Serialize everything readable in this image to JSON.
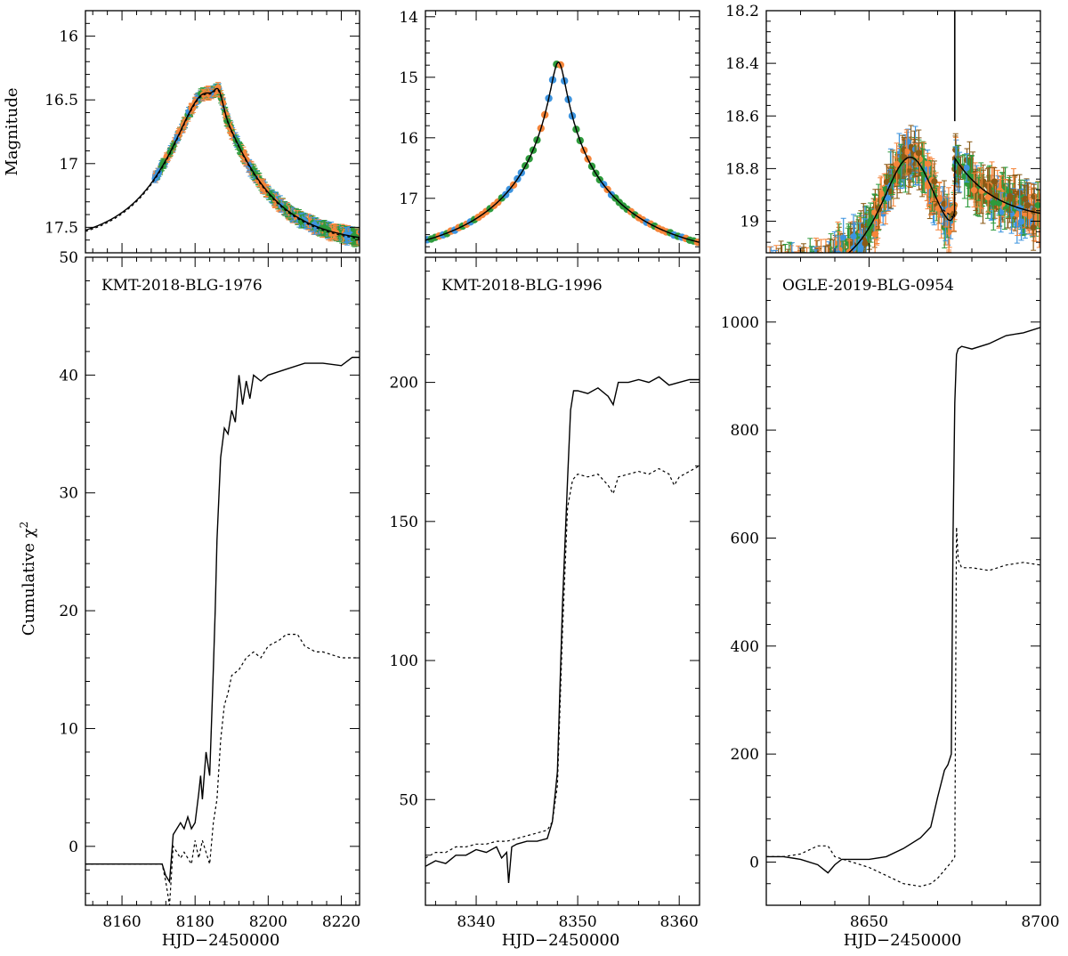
{
  "figure": {
    "x_label": "HJD−2450000",
    "top_y_label": "Magnitude",
    "bottom_y_label": "Cumulative χ",
    "bottom_y_label_sup": "2"
  },
  "colors": {
    "orange": "#f5853a",
    "blue": "#3d94df",
    "green": "#2e9a3c",
    "brown": "#8a5a16",
    "curve": "#000000"
  },
  "chart_data": [
    {
      "type": "line",
      "panel": "light-curve",
      "event": "KMT-2018-BLG-1976",
      "xlabel": "HJD−2450000",
      "ylabel": "Magnitude",
      "xlim": [
        8150,
        8225
      ],
      "ylim": [
        17.7,
        15.8
      ],
      "y_inverted": true,
      "yticks": [
        16,
        16.5,
        17,
        17.5
      ],
      "yticklabels": [
        "16",
        "16.5",
        "17",
        "17.5"
      ],
      "xticks": [
        8160,
        8180,
        8200,
        8220
      ],
      "model": {
        "t0": 8183,
        "u0": 0.345,
        "tE": 22,
        "base_mag": 17.65,
        "bump": {
          "t": 8186.5,
          "amp": 0.12,
          "width": 1.6
        }
      },
      "data_x_range": [
        8169,
        8225
      ],
      "data_colors": [
        "orange",
        "blue",
        "green"
      ]
    },
    {
      "type": "line",
      "panel": "cumulative-chi2",
      "event": "KMT-2018-BLG-1976",
      "xlabel": "HJD−2450000",
      "ylabel": "Cumulative χ2",
      "xlim": [
        8150,
        8225
      ],
      "ylim": [
        -5,
        50
      ],
      "xticks": [
        8160,
        8180,
        8200,
        8220
      ],
      "xticklabels": [
        "8160",
        "8180",
        "8200",
        "8220"
      ],
      "yticks": [
        0,
        10,
        20,
        30,
        40,
        50
      ],
      "yticklabels": [
        "0",
        "10",
        "20",
        "30",
        "40",
        "50"
      ],
      "series": [
        {
          "name": "solid",
          "style": "solid",
          "x": [
            8150,
            8171,
            8172,
            8173,
            8174,
            8175,
            8176,
            8177,
            8178,
            8179,
            8180,
            8181,
            8181.5,
            8182,
            8183,
            8184,
            8185,
            8185.5,
            8186,
            8187,
            8188,
            8189,
            8190,
            8191,
            8192,
            8193,
            8194,
            8195,
            8196,
            8198,
            8200,
            8205,
            8210,
            8215,
            8220,
            8223,
            8225
          ],
          "y": [
            -1.5,
            -1.5,
            -2.5,
            -3.0,
            1.0,
            1.5,
            2.0,
            1.5,
            2.5,
            1.5,
            2.0,
            4.5,
            6.0,
            4.0,
            8.0,
            6.0,
            15.0,
            20.0,
            26.0,
            33.0,
            35.5,
            35.0,
            37.0,
            36.0,
            40.0,
            37.5,
            39.5,
            38.0,
            40.0,
            39.5,
            40.0,
            40.5,
            41.0,
            41.0,
            40.8,
            41.5,
            41.5
          ]
        },
        {
          "name": "dotted",
          "style": "dotted",
          "x": [
            8150,
            8171,
            8172,
            8173,
            8174,
            8175,
            8176,
            8177,
            8178,
            8179,
            8180,
            8181,
            8182,
            8183,
            8184,
            8185,
            8186,
            8187,
            8188,
            8189,
            8190,
            8192,
            8194,
            8196,
            8198,
            8200,
            8203,
            8205,
            8208,
            8210,
            8213,
            8215,
            8220,
            8225
          ],
          "y": [
            -1.5,
            -1.5,
            -3.0,
            -5.0,
            0.0,
            -0.5,
            -1.0,
            -0.5,
            -1.0,
            -1.5,
            0.5,
            -1.0,
            0.5,
            -0.5,
            -1.5,
            2.0,
            4.0,
            9.0,
            12.0,
            13.0,
            14.5,
            15.0,
            16.0,
            16.5,
            16.0,
            17.0,
            17.5,
            18.0,
            18.0,
            17.0,
            16.5,
            16.5,
            16.0,
            16.0
          ]
        }
      ]
    },
    {
      "type": "line",
      "panel": "light-curve",
      "event": "KMT-2018-BLG-1996",
      "xlabel": "HJD−2450000",
      "ylabel": "Magnitude",
      "xlim": [
        8335,
        8362
      ],
      "ylim": [
        17.9,
        13.9
      ],
      "y_inverted": true,
      "yticks": [
        14,
        15,
        16,
        17
      ],
      "yticklabels": [
        "14",
        "15",
        "16",
        "17"
      ],
      "xticks": [
        8340,
        8350,
        8360
      ],
      "model": {
        "t0": 8348.1,
        "u0": 0.048,
        "tE": 14,
        "base_mag": 18.05,
        "bump": null
      },
      "data_x_range": [
        8335,
        8362
      ],
      "data_colors": [
        "orange",
        "blue",
        "green"
      ]
    },
    {
      "type": "line",
      "panel": "cumulative-chi2",
      "event": "KMT-2018-BLG-1996",
      "xlabel": "HJD−2450000",
      "ylabel": "Cumulative χ2",
      "xlim": [
        8335,
        8362
      ],
      "ylim": [
        12,
        245
      ],
      "xticks": [
        8340,
        8350,
        8360
      ],
      "xticklabels": [
        "8340",
        "8350",
        "8360"
      ],
      "yticks": [
        50,
        100,
        150,
        200
      ],
      "yticklabels": [
        "50",
        "100",
        "150",
        "200"
      ],
      "series": [
        {
          "name": "solid",
          "style": "solid",
          "x": [
            8335,
            8336,
            8337,
            8338,
            8339,
            8340,
            8341,
            8342,
            8342.5,
            8343,
            8343.2,
            8343.5,
            8344,
            8345,
            8346,
            8347,
            8347.5,
            8348,
            8348.5,
            8349,
            8349.3,
            8349.6,
            8350,
            8351,
            8352,
            8353,
            8353.5,
            8354,
            8355,
            8356,
            8357,
            8358,
            8359,
            8360,
            8361,
            8362
          ],
          "y": [
            26,
            28,
            27,
            30,
            30,
            32,
            31,
            33,
            29,
            31,
            20,
            33,
            34,
            35,
            35,
            36,
            42,
            60,
            120,
            165,
            190,
            197,
            197,
            196,
            198,
            195,
            192,
            200,
            200,
            201,
            200,
            202,
            199,
            200,
            201,
            201
          ]
        },
        {
          "name": "dotted",
          "style": "dotted",
          "x": [
            8335,
            8336,
            8337,
            8338,
            8339,
            8340,
            8341,
            8342,
            8343,
            8344,
            8345,
            8346,
            8347,
            8347.5,
            8348,
            8348.5,
            8349,
            8349.5,
            8350,
            8351,
            8352,
            8353,
            8353.5,
            8354,
            8355,
            8356,
            8357,
            8358,
            8359,
            8359.5,
            8360,
            8361,
            8362
          ],
          "y": [
            29,
            31,
            31,
            33,
            33,
            34,
            34,
            35,
            35,
            36,
            37,
            38,
            39,
            42,
            55,
            110,
            155,
            165,
            167,
            166,
            167,
            163,
            160,
            166,
            167,
            168,
            167,
            169,
            167,
            163,
            166,
            168,
            170
          ]
        }
      ]
    },
    {
      "type": "line",
      "panel": "light-curve",
      "event": "OGLE-2019-BLG-0954",
      "xlabel": "HJD−2450000",
      "ylabel": "Magnitude",
      "xlim": [
        8620,
        8700
      ],
      "ylim": [
        19.12,
        18.2
      ],
      "y_inverted": true,
      "yticks": [
        18.2,
        18.4,
        18.6,
        18.8,
        19
      ],
      "yticklabels": [
        "18.2",
        "18.4",
        "18.6",
        "18.8",
        "19"
      ],
      "xticks": [
        8650,
        8700
      ],
      "model": {
        "t0": 8662,
        "u0": 0.8,
        "tE": 12,
        "base_mag": 19.22,
        "caustic_t": 8675,
        "post_caustic_mag": 18.76
      },
      "data_x_range": [
        8620,
        8700
      ],
      "data_colors": [
        "orange",
        "blue",
        "green",
        "brown"
      ]
    },
    {
      "type": "line",
      "panel": "cumulative-chi2",
      "event": "OGLE-2019-BLG-0954",
      "xlabel": "HJD−2450000",
      "ylabel": "Cumulative χ2",
      "xlim": [
        8620,
        8700
      ],
      "ylim": [
        -80,
        1120
      ],
      "xticks": [
        8650,
        8700
      ],
      "xticklabels": [
        "8650",
        "8700"
      ],
      "yticks": [
        0,
        200,
        400,
        600,
        800,
        1000
      ],
      "yticklabels": [
        "0",
        "200",
        "400",
        "600",
        "800",
        "1000"
      ],
      "series": [
        {
          "name": "solid",
          "style": "solid",
          "x": [
            8620,
            8625,
            8630,
            8635,
            8638,
            8640,
            8642,
            8645,
            8650,
            8655,
            8660,
            8665,
            8668,
            8670,
            8672,
            8673,
            8674,
            8674.5,
            8675,
            8675.5,
            8676,
            8677,
            8680,
            8685,
            8690,
            8695,
            8700
          ],
          "y": [
            10,
            10,
            5,
            -5,
            -20,
            -5,
            5,
            5,
            5,
            10,
            25,
            45,
            65,
            120,
            170,
            180,
            200,
            600,
            850,
            940,
            950,
            955,
            950,
            960,
            975,
            980,
            990
          ]
        },
        {
          "name": "dotted",
          "style": "dotted",
          "x": [
            8620,
            8625,
            8630,
            8635,
            8638,
            8640,
            8645,
            8650,
            8655,
            8660,
            8665,
            8668,
            8670,
            8672,
            8674,
            8675,
            8675.5,
            8676,
            8677,
            8680,
            8685,
            8690,
            8695,
            8700
          ],
          "y": [
            10,
            10,
            15,
            30,
            30,
            10,
            0,
            -10,
            -25,
            -40,
            -45,
            -40,
            -30,
            -15,
            0,
            10,
            620,
            560,
            545,
            545,
            540,
            550,
            555,
            550
          ]
        }
      ]
    }
  ]
}
